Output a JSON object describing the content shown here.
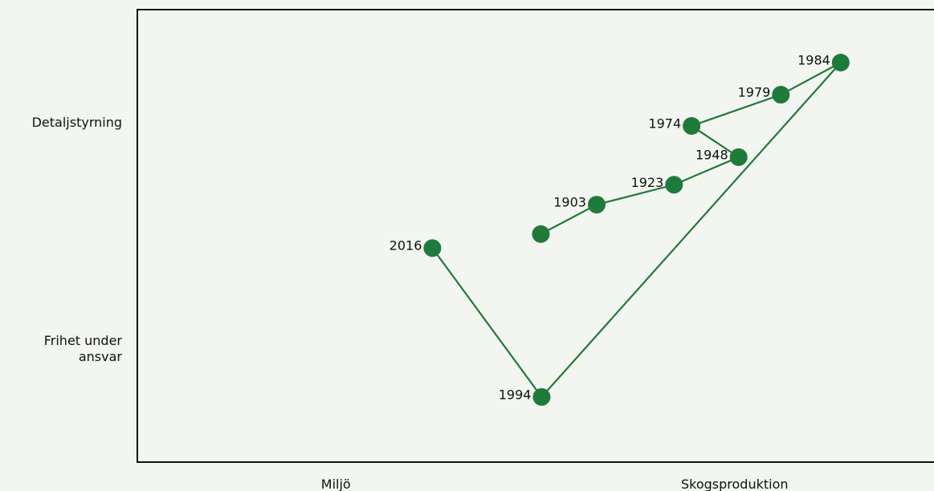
{
  "chart_data": {
    "type": "scatter",
    "connect": true,
    "x": [
      5.07,
      5.77,
      6.74,
      7.55,
      6.96,
      8.08,
      8.83,
      5.08,
      3.71
    ],
    "point_labels": [
      null,
      "1903",
      "1923",
      "1948",
      "1974",
      "1979",
      "1984",
      "1994",
      "2016"
    ],
    "series": [
      {
        "color": "#1e7b3a",
        "values": [
          5.04,
          5.69,
          6.13,
          6.74,
          7.43,
          8.12,
          8.83,
          1.44,
          4.73
        ]
      }
    ],
    "xlim": [
      0,
      10
    ],
    "ylim": [
      0,
      10
    ],
    "xticks": [
      {
        "value": 2.5,
        "label": "Miljö"
      },
      {
        "value": 7.5,
        "label": "Skogsproduktion"
      }
    ],
    "yticks": [
      {
        "value": 2.5,
        "label": "Frihet under ansvar"
      },
      {
        "value": 7.5,
        "label": "Detaljstyrning"
      }
    ]
  }
}
